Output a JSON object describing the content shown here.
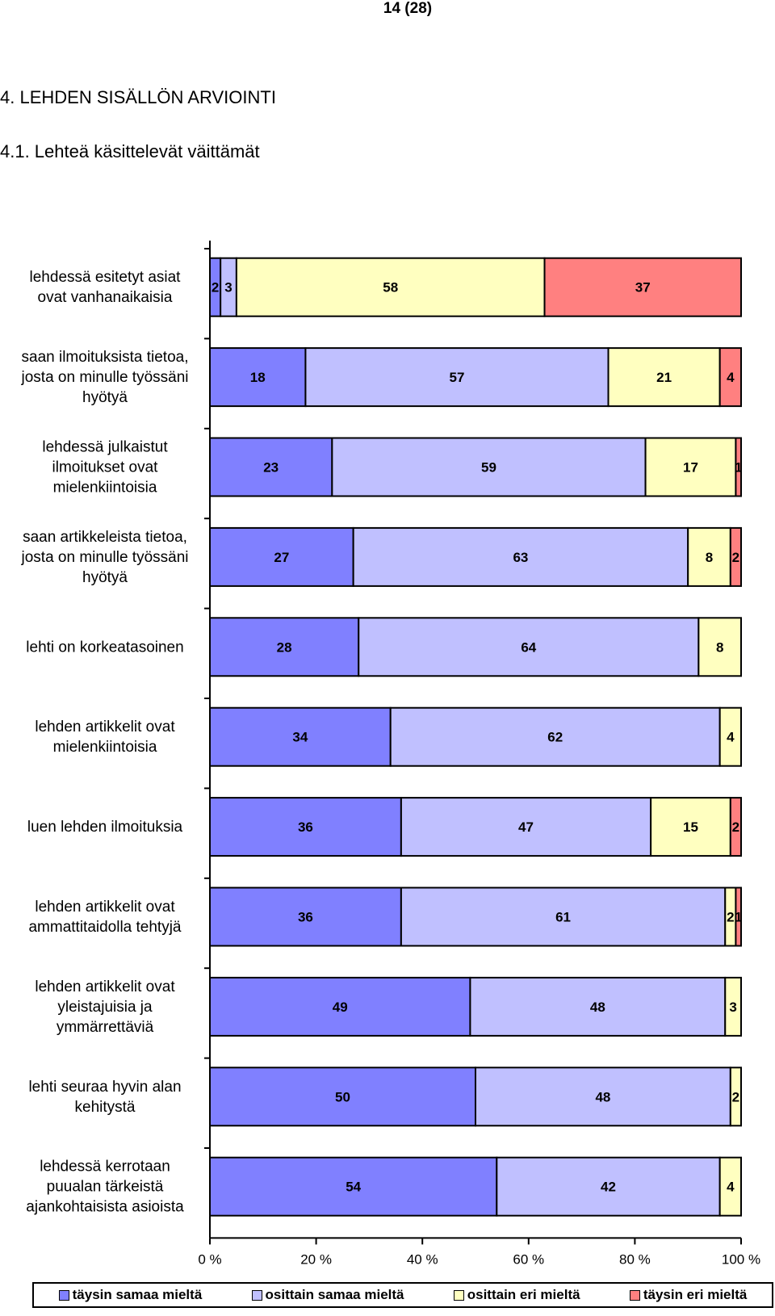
{
  "page": {
    "number": "14 (28)",
    "section_title": "4. LEHDEN SISÄLLÖN ARVIOINTI",
    "subsection_title": "4.1. Lehteä käsittelevät väittämät"
  },
  "colors": {
    "taysin_samaa": "#8080ff",
    "osittain_samaa": "#c0c0ff",
    "osittain_eri": "#ffffc0",
    "taysin_eri": "#ff8080"
  },
  "chart_data": {
    "type": "bar",
    "orientation": "horizontal",
    "stacked": "percent",
    "categories": [
      [
        "lehdessä esitetyt asiat",
        "ovat vanhanaikaisia"
      ],
      [
        "saan ilmoituksista tietoa,",
        "josta on minulle työssäni",
        "hyötyä"
      ],
      [
        "lehdessä julkaistut",
        "ilmoitukset ovat",
        "mielenkiintoisia"
      ],
      [
        "saan artikkeleista tietoa,",
        "josta on minulle työssäni",
        "hyötyä"
      ],
      [
        "lehti on korkeatasoinen"
      ],
      [
        "lehden artikkelit ovat",
        "mielenkiintoisia"
      ],
      [
        "luen lehden ilmoituksia"
      ],
      [
        "lehden artikkelit ovat",
        "ammattitaidolla tehtyjä"
      ],
      [
        "lehden artikkelit ovat",
        "yleistajuisia ja",
        "ymmärrettäviä"
      ],
      [
        "lehti seuraa hyvin alan",
        "kehitystä"
      ],
      [
        "lehdessä kerrotaan",
        "puualan tärkeistä",
        "ajankohtaisista asioista"
      ]
    ],
    "series": [
      {
        "name": "täysin samaa mieltä",
        "color": "#8080ff",
        "values": [
          2,
          18,
          23,
          27,
          28,
          34,
          36,
          36,
          49,
          50,
          54
        ]
      },
      {
        "name": "osittain samaa mieltä",
        "color": "#c0c0ff",
        "values": [
          3,
          57,
          59,
          63,
          64,
          62,
          47,
          61,
          48,
          48,
          42
        ]
      },
      {
        "name": "osittain eri mieltä",
        "color": "#ffffc0",
        "values": [
          58,
          21,
          17,
          8,
          8,
          4,
          15,
          2,
          3,
          2,
          4
        ]
      },
      {
        "name": "täysin eri mieltä",
        "color": "#ff8080",
        "values": [
          37,
          4,
          1,
          2,
          0,
          0,
          2,
          1,
          0,
          0,
          0
        ]
      }
    ],
    "xlim": [
      0,
      100
    ],
    "x_ticks": [
      "0 %",
      "20 %",
      "40 %",
      "60 %",
      "80 %",
      "100 %"
    ],
    "legend_position": "bottom"
  }
}
